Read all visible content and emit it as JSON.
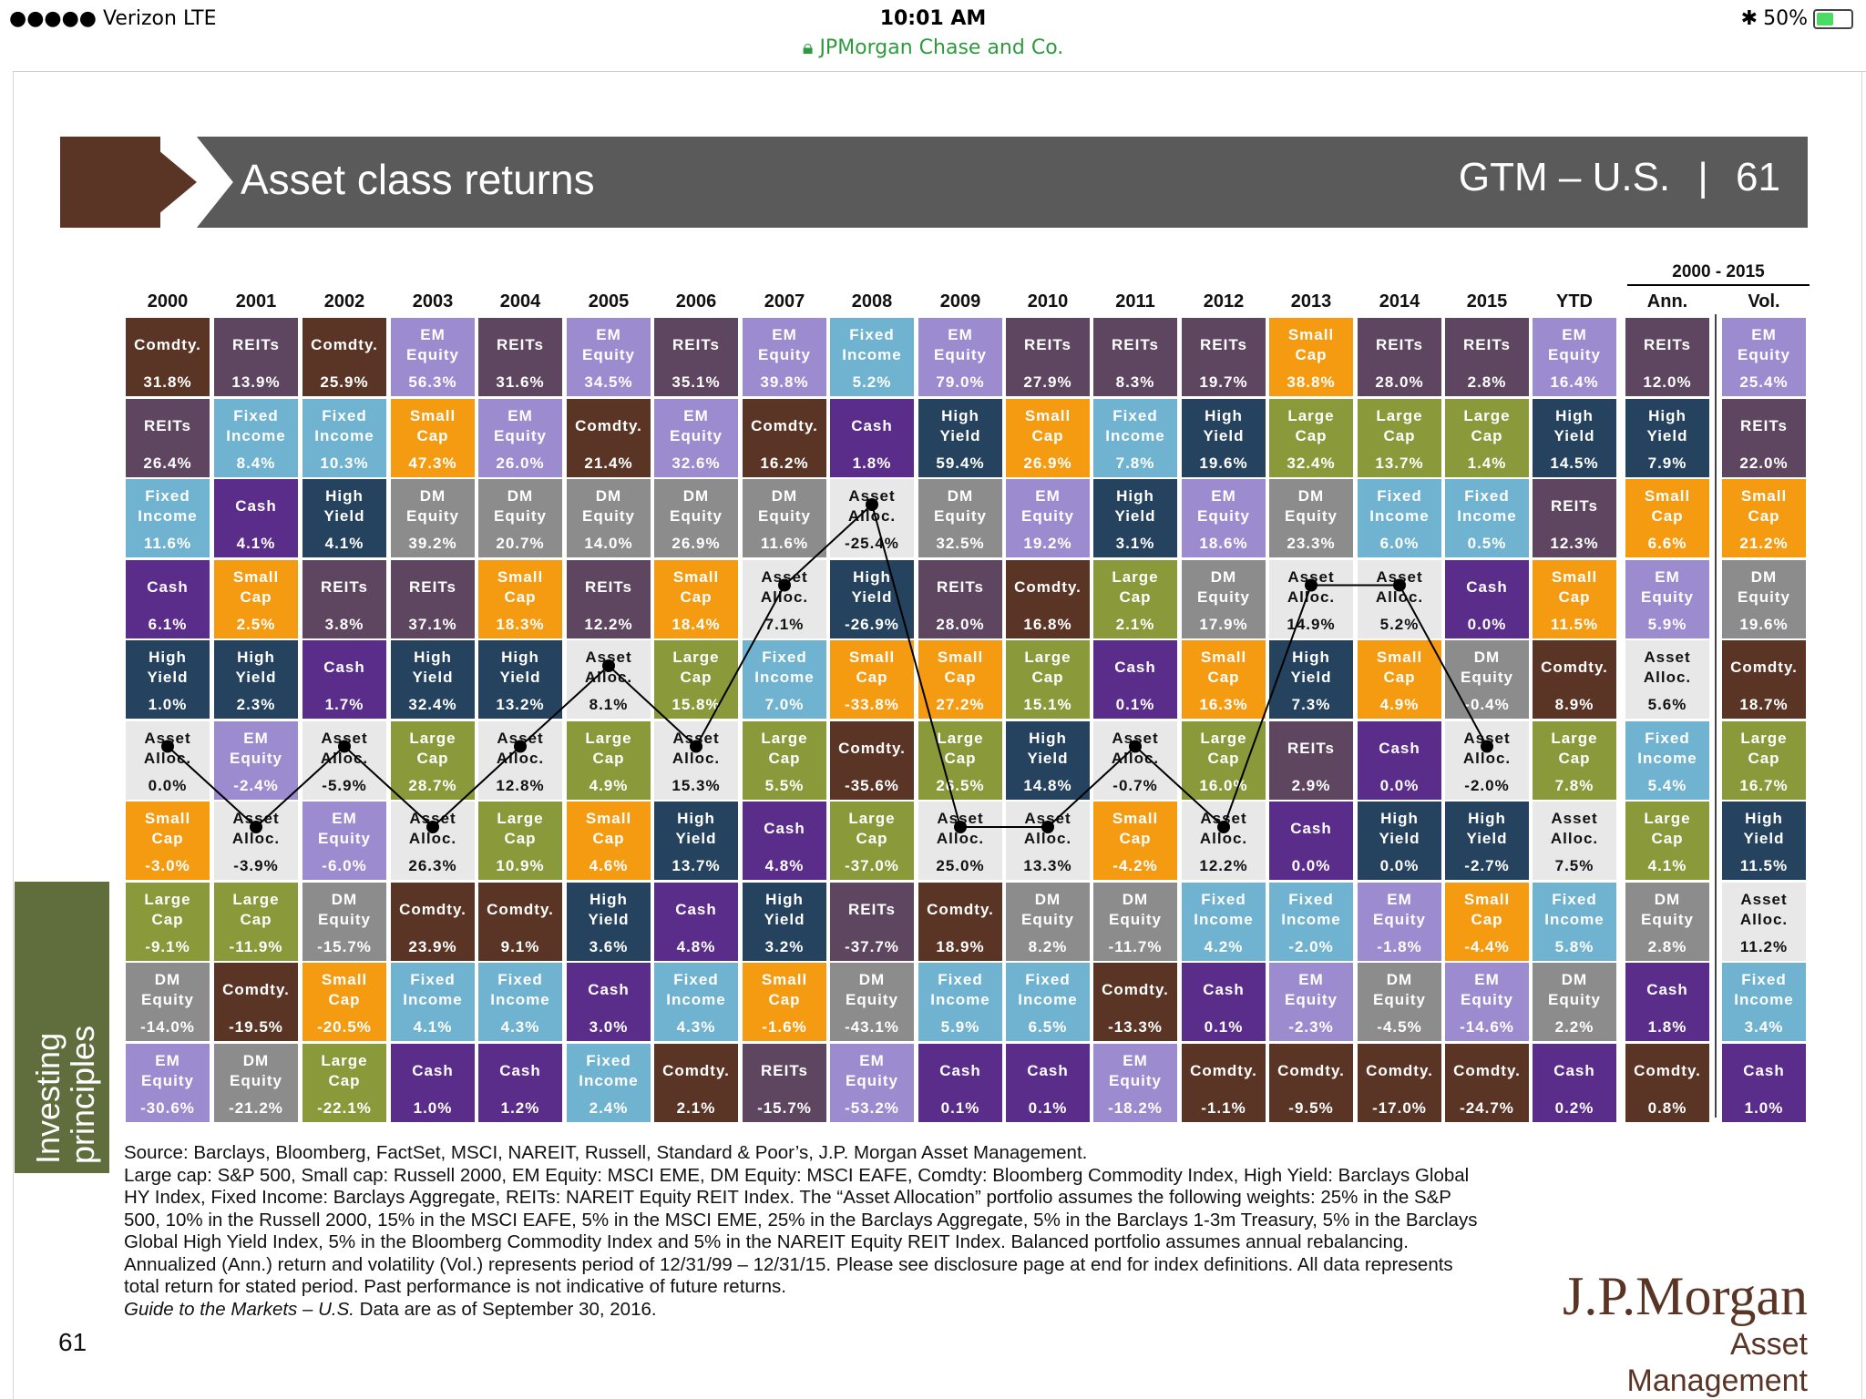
{
  "status_bar": {
    "carrier": "●●●●● Verizon  LTE",
    "time": "10:01 AM",
    "battery": "50%",
    "battery_level": 0.5
  },
  "browser": {
    "url_label": "JPMorgan Chase and Co."
  },
  "header": {
    "title": "Asset class returns",
    "gtm": "GTM – U.S.",
    "page": "61"
  },
  "columns": [
    "2000",
    "2001",
    "2002",
    "2003",
    "2004",
    "2005",
    "2006",
    "2007",
    "2008",
    "2009",
    "2010",
    "2011",
    "2012",
    "2013",
    "2014",
    "2015",
    "YTD"
  ],
  "ann_header": {
    "period": "2000 - 2015",
    "ann": "Ann.",
    "vol": "Vol."
  },
  "legend_colors": {
    "Comdty.": "#5a3525",
    "REITs": "#5e4560",
    "EM Equity": "#9d8bd0",
    "Fixed Income": "#6fb3d1",
    "Small Cap": "#f59b12",
    "High Yield": "#25435e",
    "Cash": "#5a2d8a",
    "DM Equity": "#8c8c8c",
    "Asset Alloc.": "#e8e8e8",
    "Large Cap": "#8a9a3a"
  },
  "chart_data": {
    "type": "table",
    "title": "Asset class returns",
    "columns": [
      "2000",
      "2001",
      "2002",
      "2003",
      "2004",
      "2005",
      "2006",
      "2007",
      "2008",
      "2009",
      "2010",
      "2011",
      "2012",
      "2013",
      "2014",
      "2015",
      "YTD",
      "Ann.",
      "Vol."
    ],
    "grid": [
      [
        [
          "Comdty.",
          "31.8%"
        ],
        [
          "REITs",
          "13.9%"
        ],
        [
          "Comdty.",
          "25.9%"
        ],
        [
          "EM Equity",
          "56.3%"
        ],
        [
          "REITs",
          "31.6%"
        ],
        [
          "EM Equity",
          "34.5%"
        ],
        [
          "REITs",
          "35.1%"
        ],
        [
          "EM Equity",
          "39.8%"
        ],
        [
          "Fixed Income",
          "5.2%"
        ],
        [
          "EM Equity",
          "79.0%"
        ],
        [
          "REITs",
          "27.9%"
        ],
        [
          "REITs",
          "8.3%"
        ],
        [
          "REITs",
          "19.7%"
        ],
        [
          "Small Cap",
          "38.8%"
        ],
        [
          "REITs",
          "28.0%"
        ],
        [
          "REITs",
          "2.8%"
        ],
        [
          "EM Equity",
          "16.4%"
        ],
        [
          "REITs",
          "12.0%"
        ],
        [
          "EM Equity",
          "25.4%"
        ]
      ],
      [
        [
          "REITs",
          "26.4%"
        ],
        [
          "Fixed Income",
          "8.4%"
        ],
        [
          "Fixed Income",
          "10.3%"
        ],
        [
          "Small Cap",
          "47.3%"
        ],
        [
          "EM Equity",
          "26.0%"
        ],
        [
          "Comdty.",
          "21.4%"
        ],
        [
          "EM Equity",
          "32.6%"
        ],
        [
          "Comdty.",
          "16.2%"
        ],
        [
          "Cash",
          "1.8%"
        ],
        [
          "High Yield",
          "59.4%"
        ],
        [
          "Small Cap",
          "26.9%"
        ],
        [
          "Fixed Income",
          "7.8%"
        ],
        [
          "High Yield",
          "19.6%"
        ],
        [
          "Large Cap",
          "32.4%"
        ],
        [
          "Large Cap",
          "13.7%"
        ],
        [
          "Large Cap",
          "1.4%"
        ],
        [
          "High Yield",
          "14.5%"
        ],
        [
          "High Yield",
          "7.9%"
        ],
        [
          "REITs",
          "22.0%"
        ]
      ],
      [
        [
          "Fixed Income",
          "11.6%"
        ],
        [
          "Cash",
          "4.1%"
        ],
        [
          "High Yield",
          "4.1%"
        ],
        [
          "DM Equity",
          "39.2%"
        ],
        [
          "DM Equity",
          "20.7%"
        ],
        [
          "DM Equity",
          "14.0%"
        ],
        [
          "DM Equity",
          "26.9%"
        ],
        [
          "DM Equity",
          "11.6%"
        ],
        [
          "Asset Alloc.",
          "-25.4%"
        ],
        [
          "DM Equity",
          "32.5%"
        ],
        [
          "EM Equity",
          "19.2%"
        ],
        [
          "High Yield",
          "3.1%"
        ],
        [
          "EM Equity",
          "18.6%"
        ],
        [
          "DM Equity",
          "23.3%"
        ],
        [
          "Fixed Income",
          "6.0%"
        ],
        [
          "Fixed Income",
          "0.5%"
        ],
        [
          "REITs",
          "12.3%"
        ],
        [
          "Small Cap",
          "6.6%"
        ],
        [
          "Small Cap",
          "21.2%"
        ]
      ],
      [
        [
          "Cash",
          "6.1%"
        ],
        [
          "Small Cap",
          "2.5%"
        ],
        [
          "REITs",
          "3.8%"
        ],
        [
          "REITs",
          "37.1%"
        ],
        [
          "Small Cap",
          "18.3%"
        ],
        [
          "REITs",
          "12.2%"
        ],
        [
          "Small Cap",
          "18.4%"
        ],
        [
          "Asset Alloc.",
          "7.1%"
        ],
        [
          "High Yield",
          "-26.9%"
        ],
        [
          "REITs",
          "28.0%"
        ],
        [
          "Comdty.",
          "16.8%"
        ],
        [
          "Large Cap",
          "2.1%"
        ],
        [
          "DM Equity",
          "17.9%"
        ],
        [
          "Asset Alloc.",
          "14.9%"
        ],
        [
          "Asset Alloc.",
          "5.2%"
        ],
        [
          "Cash",
          "0.0%"
        ],
        [
          "Small Cap",
          "11.5%"
        ],
        [
          "EM Equity",
          "5.9%"
        ],
        [
          "DM Equity",
          "19.6%"
        ]
      ],
      [
        [
          "High Yield",
          "1.0%"
        ],
        [
          "High Yield",
          "2.3%"
        ],
        [
          "Cash",
          "1.7%"
        ],
        [
          "High Yield",
          "32.4%"
        ],
        [
          "High Yield",
          "13.2%"
        ],
        [
          "Asset Alloc.",
          "8.1%"
        ],
        [
          "Large Cap",
          "15.8%"
        ],
        [
          "Fixed Income",
          "7.0%"
        ],
        [
          "Small Cap",
          "-33.8%"
        ],
        [
          "Small Cap",
          "27.2%"
        ],
        [
          "Large Cap",
          "15.1%"
        ],
        [
          "Cash",
          "0.1%"
        ],
        [
          "Small Cap",
          "16.3%"
        ],
        [
          "High Yield",
          "7.3%"
        ],
        [
          "Small Cap",
          "4.9%"
        ],
        [
          "DM Equity",
          "-0.4%"
        ],
        [
          "Comdty.",
          "8.9%"
        ],
        [
          "Asset Alloc.",
          "5.6%"
        ],
        [
          "Comdty.",
          "18.7%"
        ]
      ],
      [
        [
          "Asset Alloc.",
          "0.0%"
        ],
        [
          "EM Equity",
          "-2.4%"
        ],
        [
          "Asset Alloc.",
          "-5.9%"
        ],
        [
          "Large Cap",
          "28.7%"
        ],
        [
          "Asset Alloc.",
          "12.8%"
        ],
        [
          "Large Cap",
          "4.9%"
        ],
        [
          "Asset Alloc.",
          "15.3%"
        ],
        [
          "Large Cap",
          "5.5%"
        ],
        [
          "Comdty.",
          "-35.6%"
        ],
        [
          "Large Cap",
          "26.5%"
        ],
        [
          "High Yield",
          "14.8%"
        ],
        [
          "Asset Alloc.",
          "-0.7%"
        ],
        [
          "Large Cap",
          "16.0%"
        ],
        [
          "REITs",
          "2.9%"
        ],
        [
          "Cash",
          "0.0%"
        ],
        [
          "Asset Alloc.",
          "-2.0%"
        ],
        [
          "Large Cap",
          "7.8%"
        ],
        [
          "Fixed Income",
          "5.4%"
        ],
        [
          "Large Cap",
          "16.7%"
        ]
      ],
      [
        [
          "Small Cap",
          "-3.0%"
        ],
        [
          "Asset Alloc.",
          "-3.9%"
        ],
        [
          "EM Equity",
          "-6.0%"
        ],
        [
          "Asset Alloc.",
          "26.3%"
        ],
        [
          "Large Cap",
          "10.9%"
        ],
        [
          "Small Cap",
          "4.6%"
        ],
        [
          "High Yield",
          "13.7%"
        ],
        [
          "Cash",
          "4.8%"
        ],
        [
          "Large Cap",
          "-37.0%"
        ],
        [
          "Asset Alloc.",
          "25.0%"
        ],
        [
          "Asset Alloc.",
          "13.3%"
        ],
        [
          "Small Cap",
          "-4.2%"
        ],
        [
          "Asset Alloc.",
          "12.2%"
        ],
        [
          "Cash",
          "0.0%"
        ],
        [
          "High Yield",
          "0.0%"
        ],
        [
          "High Yield",
          "-2.7%"
        ],
        [
          "Asset Alloc.",
          "7.5%"
        ],
        [
          "Large Cap",
          "4.1%"
        ],
        [
          "High Yield",
          "11.5%"
        ]
      ],
      [
        [
          "Large Cap",
          "-9.1%"
        ],
        [
          "Large Cap",
          "-11.9%"
        ],
        [
          "DM Equity",
          "-15.7%"
        ],
        [
          "Comdty.",
          "23.9%"
        ],
        [
          "Comdty.",
          "9.1%"
        ],
        [
          "High Yield",
          "3.6%"
        ],
        [
          "Cash",
          "4.8%"
        ],
        [
          "High Yield",
          "3.2%"
        ],
        [
          "REITs",
          "-37.7%"
        ],
        [
          "Comdty.",
          "18.9%"
        ],
        [
          "DM Equity",
          "8.2%"
        ],
        [
          "DM Equity",
          "-11.7%"
        ],
        [
          "Fixed Income",
          "4.2%"
        ],
        [
          "Fixed Income",
          "-2.0%"
        ],
        [
          "EM Equity",
          "-1.8%"
        ],
        [
          "Small Cap",
          "-4.4%"
        ],
        [
          "Fixed Income",
          "5.8%"
        ],
        [
          "DM Equity",
          "2.8%"
        ],
        [
          "Asset Alloc.",
          "11.2%"
        ]
      ],
      [
        [
          "DM Equity",
          "-14.0%"
        ],
        [
          "Comdty.",
          "-19.5%"
        ],
        [
          "Small Cap",
          "-20.5%"
        ],
        [
          "Fixed Income",
          "4.1%"
        ],
        [
          "Fixed Income",
          "4.3%"
        ],
        [
          "Cash",
          "3.0%"
        ],
        [
          "Fixed Income",
          "4.3%"
        ],
        [
          "Small Cap",
          "-1.6%"
        ],
        [
          "DM Equity",
          "-43.1%"
        ],
        [
          "Fixed Income",
          "5.9%"
        ],
        [
          "Fixed Income",
          "6.5%"
        ],
        [
          "Comdty.",
          "-13.3%"
        ],
        [
          "Cash",
          "0.1%"
        ],
        [
          "EM Equity",
          "-2.3%"
        ],
        [
          "DM Equity",
          "-4.5%"
        ],
        [
          "EM Equity",
          "-14.6%"
        ],
        [
          "DM Equity",
          "2.2%"
        ],
        [
          "Cash",
          "1.8%"
        ],
        [
          "Fixed Income",
          "3.4%"
        ]
      ],
      [
        [
          "EM Equity",
          "-30.6%"
        ],
        [
          "DM Equity",
          "-21.2%"
        ],
        [
          "Large Cap",
          "-22.1%"
        ],
        [
          "Cash",
          "1.0%"
        ],
        [
          "Cash",
          "1.2%"
        ],
        [
          "Fixed Income",
          "2.4%"
        ],
        [
          "Comdty.",
          "2.1%"
        ],
        [
          "REITs",
          "-15.7%"
        ],
        [
          "EM Equity",
          "-53.2%"
        ],
        [
          "Cash",
          "0.1%"
        ],
        [
          "Cash",
          "0.1%"
        ],
        [
          "EM Equity",
          "-18.2%"
        ],
        [
          "Comdty.",
          "-1.1%"
        ],
        [
          "Comdty.",
          "-9.5%"
        ],
        [
          "Comdty.",
          "-17.0%"
        ],
        [
          "Comdty.",
          "-24.7%"
        ],
        [
          "Cash",
          "0.2%"
        ],
        [
          "Comdty.",
          "0.8%"
        ],
        [
          "Cash",
          "1.0%"
        ]
      ]
    ],
    "asset_alloc_rank": [
      6,
      7,
      6,
      7,
      6,
      5,
      6,
      4,
      3,
      7,
      7,
      6,
      7,
      4,
      4,
      6
    ]
  },
  "sidebar": {
    "label": "Investing principles"
  },
  "source": {
    "line1": "Source: Barclays, Bloomberg, FactSet, MSCI, NAREIT, Russell, Standard & Poor’s, J.P. Morgan Asset Management.",
    "body": "Large cap: S&P 500, Small cap: Russell 2000, EM Equity: MSCI EME, DM Equity: MSCI EAFE, Comdty: Bloomberg Commodity Index, High Yield: Barclays Global HY Index, Fixed Income: Barclays Aggregate, REITs: NAREIT Equity REIT Index. The “Asset Allocation” portfolio assumes the following weights: 25% in the S&P 500, 10% in the Russell 2000, 15% in the MSCI EAFE, 5% in the MSCI EME, 25% in the Barclays Aggregate, 5% in the Barclays 1-3m Treasury, 5% in the Barclays Global High Yield Index, 5% in the Bloomberg Commodity Index and 5% in the NAREIT Equity REIT Index. Balanced portfolio assumes annual rebalancing. Annualized (Ann.) return and volatility (Vol.) represents period of 12/31/99 – 12/31/15. Please see disclosure page at end for index definitions. All data represents total return for stated period. Past performance is not indicative of future returns.",
    "guide_italic": "Guide to the Markets – U.S.",
    "guide_rest": " Data are as of September 30, 2016."
  },
  "footer": {
    "page_number": "61"
  },
  "logo": {
    "line1": "J.P.Morgan",
    "line2": "Asset Management"
  }
}
